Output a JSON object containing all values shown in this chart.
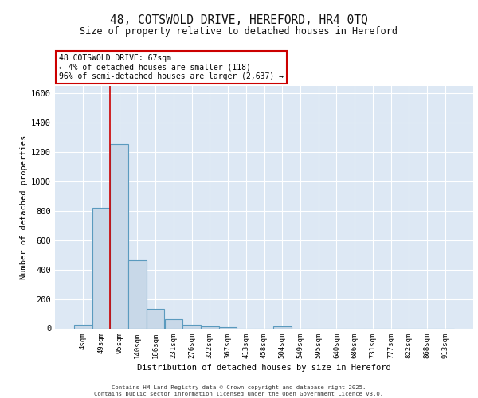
{
  "title": "48, COTSWOLD DRIVE, HEREFORD, HR4 0TQ",
  "subtitle": "Size of property relative to detached houses in Hereford",
  "xlabel": "Distribution of detached houses by size in Hereford",
  "ylabel": "Number of detached properties",
  "categories": [
    "4sqm",
    "49sqm",
    "95sqm",
    "140sqm",
    "186sqm",
    "231sqm",
    "276sqm",
    "322sqm",
    "367sqm",
    "413sqm",
    "458sqm",
    "504sqm",
    "549sqm",
    "595sqm",
    "640sqm",
    "686sqm",
    "731sqm",
    "777sqm",
    "822sqm",
    "868sqm",
    "913sqm"
  ],
  "values": [
    25,
    820,
    1250,
    460,
    130,
    60,
    25,
    15,
    10,
    0,
    0,
    15,
    0,
    0,
    0,
    0,
    0,
    0,
    0,
    0,
    0
  ],
  "bar_color": "#c8d8e8",
  "bar_edge_color": "#5a9abe",
  "bar_edge_width": 0.8,
  "red_line_x": 1.5,
  "annotation_text": "48 COTSWOLD DRIVE: 67sqm\n← 4% of detached houses are smaller (118)\n96% of semi-detached houses are larger (2,637) →",
  "annotation_box_color": "#ffffff",
  "annotation_box_edge_color": "#cc0000",
  "ylim": [
    0,
    1650
  ],
  "yticks": [
    0,
    200,
    400,
    600,
    800,
    1000,
    1200,
    1400,
    1600
  ],
  "bg_color": "#dde8f4",
  "grid_color": "#ffffff",
  "footer_line1": "Contains HM Land Registry data © Crown copyright and database right 2025.",
  "footer_line2": "Contains public sector information licensed under the Open Government Licence v3.0."
}
